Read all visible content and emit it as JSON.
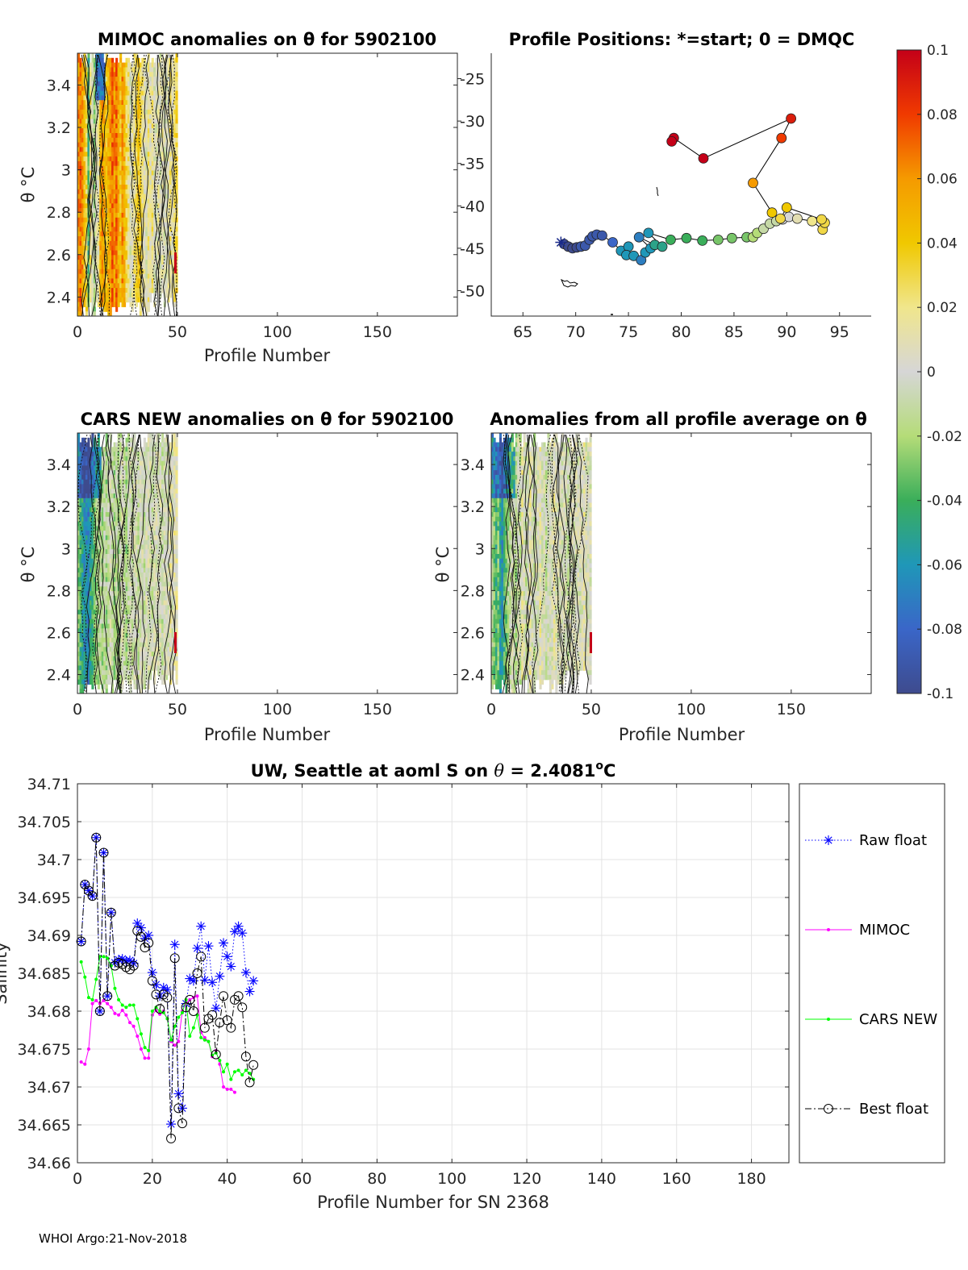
{
  "footer": "WHOI Argo:21-Nov-2018",
  "colorbar": {
    "ticks": [
      "0.1",
      "0.08",
      "0.06",
      "0.04",
      "0.02",
      "0",
      "-0.02",
      "-0.04",
      "-0.06",
      "-0.08",
      "-0.1"
    ],
    "range": [
      -0.1,
      0.1
    ]
  },
  "panels": {
    "mimoc": {
      "title": "MIMOC anomalies on θ  for 5902100",
      "xlabel": "Profile Number",
      "ylabel": "θ °C",
      "xticks": [
        "0",
        "50",
        "100",
        "150"
      ],
      "yticks": [
        "3.4",
        "3.2",
        "3",
        "2.8",
        "2.6",
        "2.4"
      ],
      "xlim": [
        0,
        190
      ],
      "ylim": [
        2.31,
        3.55
      ]
    },
    "positions": {
      "title": "Profile Positions: *=start; 0 = DMQC",
      "xticks": [
        "65",
        "70",
        "75",
        "80",
        "85",
        "90",
        "95"
      ],
      "yticks": [
        "-25",
        "-30",
        "-35",
        "-40",
        "-45",
        "-50"
      ],
      "xlim": [
        62,
        98
      ],
      "ylim": [
        -53,
        -22
      ]
    },
    "cars": {
      "title": "CARS NEW anomalies on θ for 5902100",
      "xlabel": "Profile Number",
      "ylabel": "θ °C",
      "xticks": [
        "0",
        "50",
        "100",
        "150"
      ],
      "yticks": [
        "3.4",
        "3.2",
        "3",
        "2.8",
        "2.6",
        "2.4"
      ],
      "xlim": [
        0,
        190
      ],
      "ylim": [
        2.31,
        3.55
      ]
    },
    "allavg": {
      "title": "Anomalies from all profile average on θ",
      "xlabel": "Profile Number",
      "ylabel": "θ °C",
      "xticks": [
        "0",
        "50",
        "100",
        "150"
      ],
      "yticks": [
        "3.4",
        "3.2",
        "3",
        "2.8",
        "2.6",
        "2.4"
      ],
      "xlim": [
        0,
        190
      ],
      "ylim": [
        2.31,
        3.55
      ]
    }
  },
  "chart_data": [
    {
      "type": "heatmap",
      "name": "mimoc",
      "title": "MIMOC anomalies on θ  for 5902100",
      "xlabel": "Profile Number",
      "ylabel": "θ °C",
      "xlim": [
        0,
        190
      ],
      "ylim": [
        2.31,
        3.55
      ],
      "profiles": 50,
      "column_mean_anomaly": [
        0.06,
        0.07,
        0.06,
        0.04,
        0.03,
        -0.04,
        0.02,
        0.0,
        -0.02,
        0.0,
        0.01,
        0.05,
        0.06,
        0.05,
        0.04,
        0.05,
        0.06,
        0.07,
        0.06,
        0.07,
        0.05,
        0.04,
        0.06,
        0.05,
        0.03,
        0.02,
        0.0,
        0.01,
        0.02,
        0.03,
        0.04,
        0.03,
        0.02,
        0.01,
        0.0,
        0.02,
        0.01,
        0.02,
        0.0,
        0.0,
        0.01,
        0.0,
        0.01,
        0.0,
        0.0,
        0.01,
        0.02,
        0.01,
        0.02,
        0.03
      ]
    },
    {
      "type": "scatter",
      "name": "positions",
      "title": "Profile Positions: *=start; 0 = DMQC",
      "xlim": [
        62,
        98
      ],
      "ylim": [
        -53,
        -22
      ],
      "start": [
        68.6,
        -44.3
      ],
      "lon": [
        68.9,
        69.3,
        69.7,
        70.1,
        70.5,
        70.9,
        71.3,
        71.6,
        72.0,
        72.5,
        73.5,
        74.3,
        75.0,
        74.8,
        75.5,
        76.2,
        76.6,
        77.1,
        76.0,
        77.5,
        78.2,
        76.9,
        79.0,
        80.5,
        82.0,
        83.5,
        84.8,
        86.2,
        86.8,
        87.2,
        87.8,
        88.4,
        89.0,
        89.6,
        90.2,
        91.0,
        92.4,
        93.4,
        93.6,
        93.3,
        90.0,
        89.4,
        88.6,
        86.8,
        89.5,
        90.4,
        82.1,
        79.3,
        79.1
      ],
      "lat": [
        -44.5,
        -44.8,
        -45.0,
        -44.9,
        -44.8,
        -44.7,
        -44.0,
        -43.6,
        -43.4,
        -43.5,
        -44.3,
        -45.3,
        -44.8,
        -45.8,
        -45.9,
        -46.4,
        -45.5,
        -45.0,
        -43.7,
        -44.6,
        -44.8,
        -43.2,
        -44.0,
        -43.8,
        -44.1,
        -44.0,
        -43.8,
        -43.7,
        -43.7,
        -43.2,
        -42.7,
        -42.1,
        -41.8,
        -41.6,
        -41.3,
        -41.5,
        -41.8,
        -42.8,
        -42.0,
        -41.6,
        -40.2,
        -41.5,
        -40.8,
        -37.3,
        -32.0,
        -29.7,
        -34.4,
        -32.0,
        -32.4
      ],
      "anomaly": [
        -0.1,
        -0.1,
        -0.1,
        -0.1,
        -0.09,
        -0.09,
        -0.09,
        -0.09,
        -0.09,
        -0.09,
        -0.08,
        -0.06,
        -0.06,
        -0.06,
        -0.06,
        -0.07,
        -0.06,
        -0.06,
        -0.07,
        -0.05,
        -0.05,
        -0.06,
        -0.04,
        -0.04,
        -0.04,
        -0.03,
        -0.03,
        -0.03,
        -0.02,
        -0.02,
        -0.01,
        -0.01,
        -0.01,
        0.0,
        0.0,
        0.01,
        0.02,
        0.03,
        0.03,
        0.03,
        0.04,
        0.03,
        0.04,
        0.06,
        0.08,
        0.09,
        0.1,
        0.1,
        0.1
      ]
    },
    {
      "type": "heatmap",
      "name": "cars",
      "title": "CARS NEW anomalies on θ for 5902100",
      "xlabel": "Profile Number",
      "ylabel": "θ °C",
      "xlim": [
        0,
        190
      ],
      "ylim": [
        2.31,
        3.55
      ],
      "profiles": 50,
      "column_mean_anomaly": [
        -0.03,
        -0.04,
        -0.05,
        -0.06,
        -0.06,
        -0.07,
        -0.05,
        -0.04,
        -0.03,
        -0.02,
        -0.02,
        -0.01,
        -0.02,
        -0.01,
        -0.02,
        -0.01,
        0.0,
        -0.01,
        -0.02,
        -0.01,
        -0.02,
        -0.01,
        0.0,
        -0.01,
        -0.02,
        -0.01,
        0.0,
        -0.01,
        0.0,
        0.0,
        -0.01,
        0.0,
        0.0,
        -0.01,
        0.0,
        0.0,
        0.0,
        -0.01,
        0.0,
        0.0,
        0.0,
        0.0,
        -0.01,
        0.0,
        0.0,
        0.0,
        0.01,
        0.0,
        0.01,
        0.01
      ]
    },
    {
      "type": "heatmap",
      "name": "allavg",
      "title": "Anomalies from all profile average on θ",
      "xlabel": "Profile Number",
      "ylabel": "θ °C",
      "xlim": [
        0,
        190
      ],
      "ylim": [
        2.31,
        3.55
      ],
      "profiles": 50,
      "column_mean_anomaly": [
        -0.02,
        -0.03,
        -0.04,
        -0.03,
        -0.05,
        -0.06,
        -0.04,
        -0.03,
        -0.02,
        -0.01,
        0.0,
        -0.01,
        -0.02,
        0.0,
        -0.01,
        0.01,
        0.0,
        -0.01,
        0.0,
        0.01,
        0.0,
        -0.01,
        0.0,
        0.0,
        0.01,
        0.0,
        0.0,
        -0.01,
        0.0,
        0.0,
        0.0,
        0.01,
        0.0,
        0.0,
        0.0,
        0.0,
        0.0,
        0.0,
        -0.01,
        0.0,
        0.0,
        0.0,
        0.0,
        0.0,
        0.0,
        0.0,
        0.01,
        0.0,
        0.0,
        0.0
      ]
    },
    {
      "type": "line",
      "name": "salinity",
      "title": "UW, Seattle at aoml S on θ = 2.4081°C",
      "title_parts": [
        "UW, Seattle at aoml S on ",
        "θ",
        " = 2.4081",
        "o",
        "C"
      ],
      "xlabel": "Profile Number for SN 2368",
      "ylabel": "Salinity",
      "xlim": [
        0,
        190
      ],
      "ylim": [
        34.66,
        34.71
      ],
      "grid": true,
      "xticks": [
        "0",
        "20",
        "40",
        "60",
        "80",
        "100",
        "120",
        "140",
        "160",
        "180"
      ],
      "yticks": [
        "34.71",
        "34.705",
        "34.7",
        "34.695",
        "34.69",
        "34.685",
        "34.68",
        "34.675",
        "34.67",
        "34.665",
        "34.66"
      ],
      "legend": "outside-right",
      "series": [
        {
          "name": "Raw float",
          "color": "#0000ff",
          "style": "dotted",
          "marker": "star",
          "x": [
            1,
            2,
            3,
            4,
            5,
            6,
            7,
            8,
            9,
            10,
            11,
            12,
            13,
            14,
            15,
            16,
            17,
            18,
            19,
            20,
            21,
            22,
            23,
            24,
            25,
            26,
            27,
            28,
            29,
            30,
            31,
            32,
            33,
            34,
            35,
            36,
            37,
            38,
            39,
            40,
            41,
            42,
            43,
            44,
            45,
            46,
            47
          ],
          "y": [
            34.6892,
            34.6967,
            34.6959,
            34.6952,
            34.7029,
            34.68,
            34.7009,
            34.682,
            34.693,
            34.6864,
            34.6868,
            34.6869,
            34.6866,
            34.6867,
            34.6863,
            34.6916,
            34.691,
            34.6896,
            34.69,
            34.6851,
            34.6835,
            34.682,
            34.6831,
            34.6828,
            34.6651,
            34.6888,
            34.6691,
            34.6672,
            34.681,
            34.6843,
            34.684,
            34.6883,
            34.6912,
            34.6841,
            34.6886,
            34.6838,
            34.6804,
            34.6846,
            34.689,
            34.6872,
            34.6859,
            34.6905,
            34.6912,
            34.6903,
            34.6851,
            34.6826,
            34.684
          ]
        },
        {
          "name": "MIMOC",
          "color": "#ff00ff",
          "style": "solid",
          "marker": "dot",
          "x": [
            1,
            2,
            3,
            4,
            5,
            6,
            7,
            8,
            9,
            10,
            11,
            12,
            13,
            14,
            15,
            16,
            17,
            18,
            19,
            20,
            21,
            22,
            23,
            24,
            25,
            26,
            27,
            28,
            29,
            30,
            31,
            32,
            33,
            34,
            35,
            36,
            37,
            38,
            39,
            40,
            41,
            42
          ],
          "y": [
            34.6733,
            34.673,
            34.675,
            34.681,
            34.6814,
            34.681,
            34.6814,
            34.681,
            34.6805,
            34.6797,
            34.6795,
            34.6801,
            34.6795,
            34.6785,
            34.678,
            34.6767,
            34.675,
            34.6738,
            34.6738,
            34.6795,
            34.6801,
            34.6796,
            34.68,
            34.679,
            34.676,
            34.6755,
            34.676,
            34.68,
            34.681,
            34.6815,
            34.6818,
            34.682,
            34.6772,
            34.6765,
            34.676,
            34.674,
            34.6748,
            34.673,
            34.67,
            34.6697,
            34.6697,
            34.6693
          ]
        },
        {
          "name": "CARS NEW",
          "color": "#00ff00",
          "style": "solid",
          "marker": "dot",
          "x": [
            1,
            2,
            3,
            4,
            5,
            6,
            7,
            8,
            9,
            10,
            11,
            12,
            13,
            14,
            15,
            16,
            17,
            18,
            19,
            20,
            21,
            22,
            23,
            24,
            25,
            26,
            27,
            28,
            29,
            30,
            31,
            32,
            33,
            34,
            35,
            36,
            37,
            38,
            39,
            40,
            41,
            42,
            43,
            44,
            45,
            46,
            47
          ],
          "y": [
            34.6865,
            34.6845,
            34.6818,
            34.6815,
            34.6842,
            34.6872,
            34.6872,
            34.687,
            34.686,
            34.683,
            34.6815,
            34.6808,
            34.6805,
            34.6808,
            34.6808,
            34.679,
            34.677,
            34.6752,
            34.6748,
            34.68,
            34.6805,
            34.68,
            34.6798,
            34.679,
            34.6762,
            34.678,
            34.6792,
            34.6798,
            34.6815,
            34.6767,
            34.6778,
            34.6795,
            34.6765,
            34.6762,
            34.676,
            34.6742,
            34.6745,
            34.6735,
            34.672,
            34.673,
            34.671,
            34.672,
            34.6722,
            34.6716,
            34.6722,
            34.6718,
            34.671
          ]
        },
        {
          "name": "Best float",
          "color": "#000000",
          "style": "dashdot",
          "marker": "circle",
          "x": [
            1,
            2,
            3,
            4,
            5,
            6,
            7,
            8,
            9,
            10,
            11,
            12,
            13,
            14,
            15,
            16,
            17,
            18,
            19,
            20,
            21,
            22,
            23,
            24,
            25,
            26,
            27,
            28,
            29,
            30,
            31,
            32,
            33,
            34,
            35,
            36,
            37,
            38,
            39,
            40,
            41,
            42,
            43,
            44,
            45,
            46,
            47
          ],
          "y": [
            34.6892,
            34.6967,
            34.6959,
            34.6952,
            34.7029,
            34.68,
            34.7009,
            34.682,
            34.693,
            34.686,
            34.6864,
            34.6862,
            34.6858,
            34.6855,
            34.686,
            34.6906,
            34.6898,
            34.6884,
            34.689,
            34.684,
            34.6822,
            34.6803,
            34.6822,
            34.6818,
            34.6632,
            34.687,
            34.6672,
            34.6652,
            34.6805,
            34.6815,
            34.68,
            34.685,
            34.6872,
            34.6778,
            34.679,
            34.6795,
            34.6743,
            34.6785,
            34.682,
            34.6788,
            34.6778,
            34.6815,
            34.682,
            34.6805,
            34.674,
            34.6706,
            34.6729
          ]
        }
      ]
    }
  ]
}
